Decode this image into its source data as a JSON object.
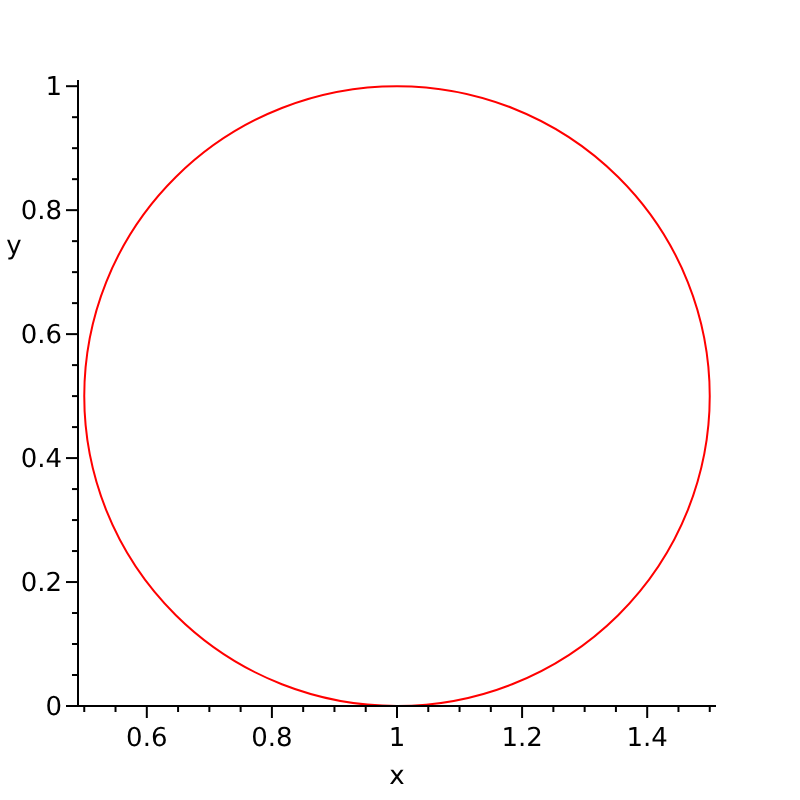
{
  "chart_data": {
    "type": "line",
    "xlabel": "x",
    "ylabel": "y",
    "xlim": [
      0.49,
      1.51
    ],
    "ylim": [
      0,
      1.01
    ],
    "xticks": [
      {
        "value": 0.5,
        "label": null
      },
      {
        "value": 0.55,
        "label": null
      },
      0.6,
      {
        "value": 0.65,
        "label": null
      },
      {
        "value": 0.7,
        "label": null
      },
      {
        "value": 0.75,
        "label": null
      },
      0.8,
      {
        "value": 0.85,
        "label": null
      },
      {
        "value": 0.9,
        "label": null
      },
      {
        "value": 0.95,
        "label": null
      },
      1,
      {
        "value": 1.05,
        "label": null
      },
      {
        "value": 1.1,
        "label": null
      },
      {
        "value": 1.15,
        "label": null
      },
      1.2,
      {
        "value": 1.25,
        "label": null
      },
      {
        "value": 1.3,
        "label": null
      },
      {
        "value": 1.35,
        "label": null
      },
      1.4,
      {
        "value": 1.45,
        "label": null
      },
      {
        "value": 1.5,
        "label": null
      }
    ],
    "yticks": [
      0,
      {
        "value": 0.05,
        "label": null
      },
      {
        "value": 0.1,
        "label": null
      },
      {
        "value": 0.15,
        "label": null
      },
      0.2,
      {
        "value": 0.25,
        "label": null
      },
      {
        "value": 0.3,
        "label": null
      },
      {
        "value": 0.35,
        "label": null
      },
      0.4,
      {
        "value": 0.45,
        "label": null
      },
      {
        "value": 0.5,
        "label": null
      },
      {
        "value": 0.55,
        "label": null
      },
      0.6,
      {
        "value": 0.65,
        "label": null
      },
      {
        "value": 0.7,
        "label": null
      },
      {
        "value": 0.75,
        "label": null
      },
      0.8,
      {
        "value": 0.85,
        "label": null
      },
      {
        "value": 0.9,
        "label": null
      },
      {
        "value": 0.95,
        "label": null
      },
      1
    ],
    "grid": false
  }
}
